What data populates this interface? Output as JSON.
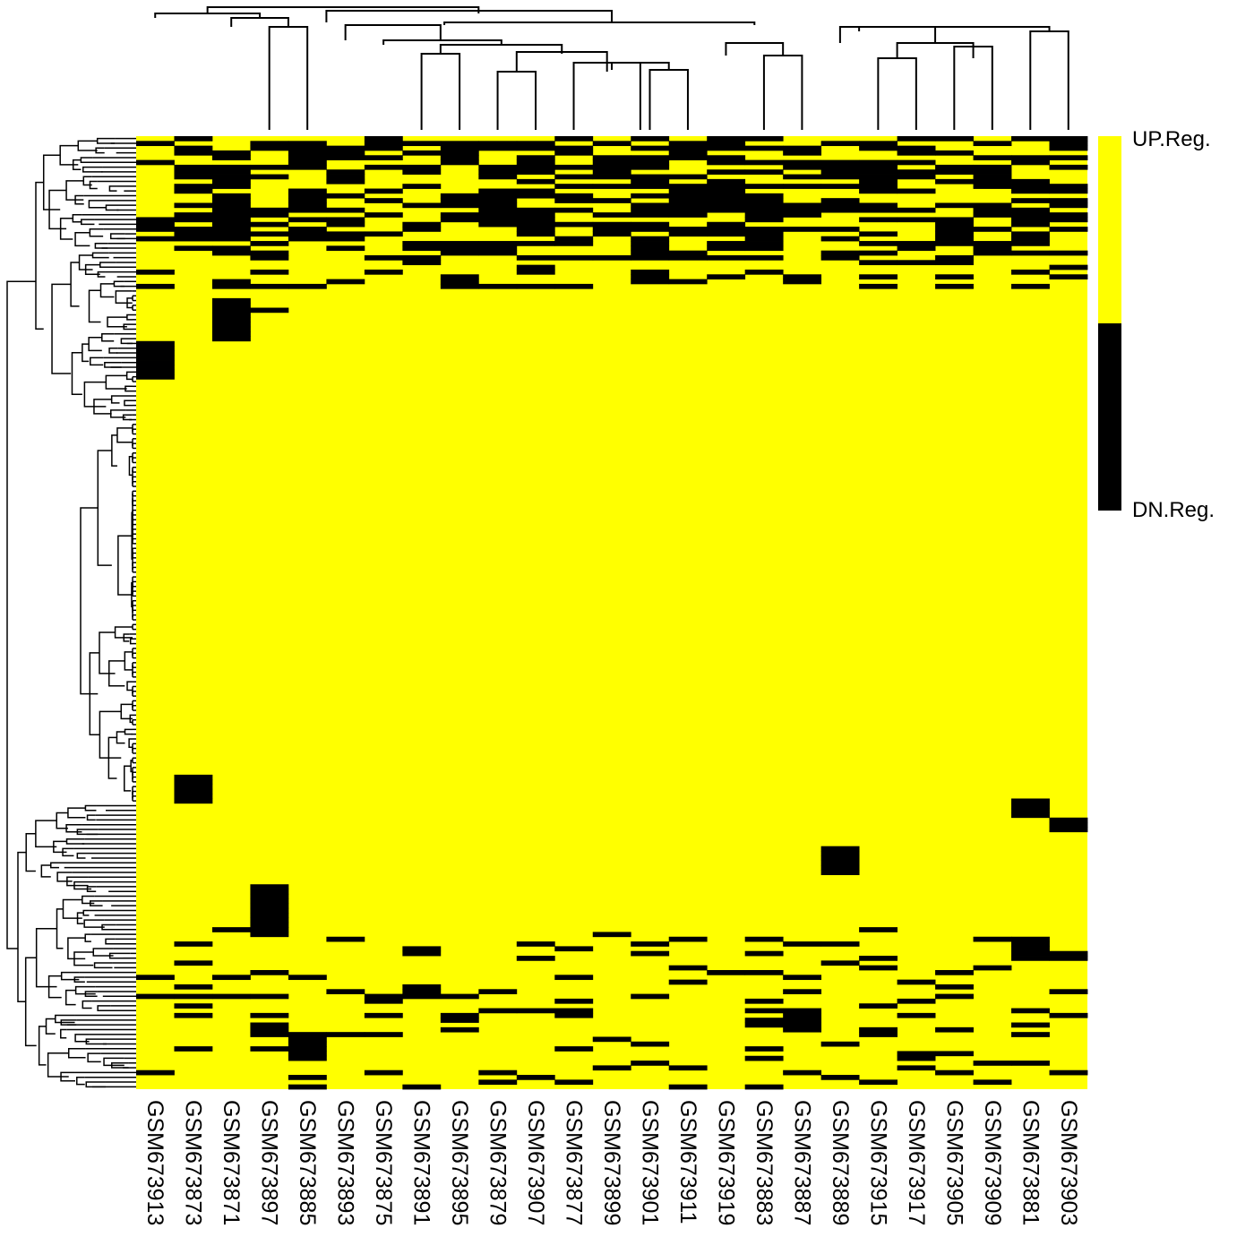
{
  "chart_data": {
    "type": "heatmap",
    "colors": {
      "up": "#ffff00",
      "down": "#000000",
      "dendrogram": "#000000"
    },
    "legend": {
      "up_label": "UP.Reg.",
      "down_label": "DN.Reg.",
      "placement": "right"
    },
    "columns": [
      "GSM673913",
      "GSM673873",
      "GSM673871",
      "GSM673897",
      "GSM673885",
      "GSM673893",
      "GSM673875",
      "GSM673891",
      "GSM673895",
      "GSM673879",
      "GSM673907",
      "GSM673877",
      "GSM673899",
      "GSM673901",
      "GSM673911",
      "GSM673919",
      "GSM673883",
      "GSM673887",
      "GSM673889",
      "GSM673915",
      "GSM673917",
      "GSM673905",
      "GSM673909",
      "GSM673881",
      "GSM673903"
    ],
    "row_count": 200,
    "default_value": "up",
    "down_blocks": [
      {
        "cols": [
          0,
          25
        ],
        "rows": [
          0,
          26
        ],
        "density": 0.55
      },
      {
        "cols": [
          0,
          25
        ],
        "rows": [
          26,
          32
        ],
        "density": 0.18
      },
      {
        "cols": [
          2,
          2
        ],
        "rows": [
          34,
          43
        ]
      },
      {
        "cols": [
          3,
          3
        ],
        "rows": [
          36,
          37
        ]
      },
      {
        "cols": [
          0,
          0
        ],
        "rows": [
          43,
          51
        ]
      },
      {
        "cols": [
          1,
          1
        ],
        "rows": [
          134,
          140
        ]
      },
      {
        "cols": [
          23,
          23
        ],
        "rows": [
          139,
          143
        ]
      },
      {
        "cols": [
          24,
          24
        ],
        "rows": [
          143,
          146
        ]
      },
      {
        "cols": [
          18,
          18
        ],
        "rows": [
          149,
          155
        ]
      },
      {
        "cols": [
          3,
          3
        ],
        "rows": [
          157,
          168
        ]
      },
      {
        "cols": [
          23,
          23
        ],
        "rows": [
          169,
          173
        ]
      },
      {
        "cols": [
          4,
          4
        ],
        "rows": [
          188,
          194
        ]
      },
      {
        "cols": [
          17,
          17
        ],
        "rows": [
          184,
          188
        ]
      },
      {
        "cols": [
          7,
          7
        ],
        "rows": [
          178,
          181
        ]
      },
      {
        "cols": [
          0,
          25
        ],
        "rows": [
          166,
          200
        ],
        "density": 0.13
      }
    ],
    "row_dendrogram": "hierarchical clustering tree (left)",
    "col_dendrogram": "hierarchical clustering tree (top)"
  }
}
